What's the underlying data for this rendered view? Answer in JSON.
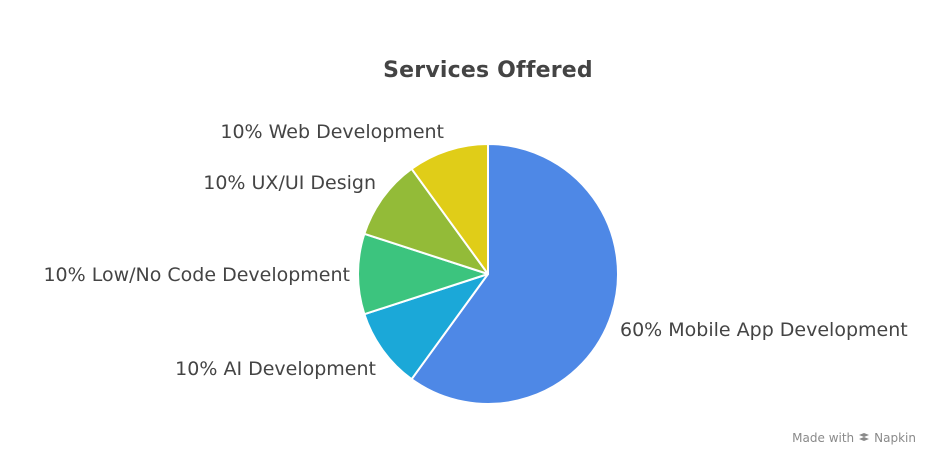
{
  "chart_data": {
    "type": "pie",
    "title": "Services Offered",
    "slices": [
      {
        "label": "60% Mobile App Development",
        "value": 60,
        "color": "#4e88e6"
      },
      {
        "label": "10% AI Development",
        "value": 10,
        "color": "#1ba8d8"
      },
      {
        "label": "10% Low/No Code Development",
        "value": 10,
        "color": "#3cc47e"
      },
      {
        "label": "10% UX/UI Design",
        "value": 10,
        "color": "#93bb38"
      },
      {
        "label": "10% Web Development",
        "value": 10,
        "color": "#e0cd18"
      }
    ],
    "start_at": "top",
    "direction": "clockwise"
  },
  "watermark": {
    "made_with": "Made with",
    "brand": "Napkin",
    "icon": "napkin-icon"
  }
}
